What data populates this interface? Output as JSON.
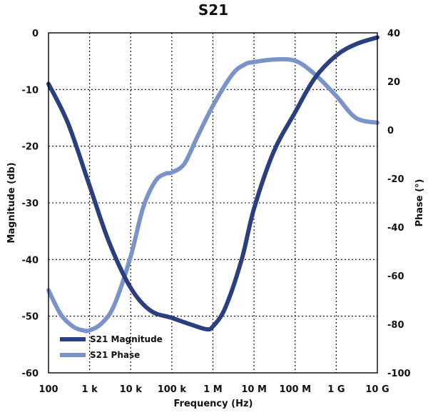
{
  "chart_data": {
    "type": "line",
    "title": "S21",
    "xlabel": "Frequency (Hz)",
    "ylabel": "Magnitude (db)",
    "y2label": "Phase (°)",
    "xscale": "log",
    "xlim": [
      100,
      10000000000
    ],
    "ylim": [
      -60,
      0
    ],
    "y2lim": [
      -100,
      40
    ],
    "grid": true,
    "legend_position": "bottom-left",
    "x_ticks": [
      100,
      1000,
      10000,
      100000,
      1000000,
      10000000,
      100000000,
      1000000000,
      10000000000
    ],
    "x_tick_labels": [
      "100",
      "1 k",
      "10 k",
      "100 k",
      "1 M",
      "10 M",
      "100 M",
      "1 G",
      "10 G"
    ],
    "y_ticks": [
      0,
      -10,
      -20,
      -30,
      -40,
      -50,
      -60
    ],
    "y_tick_labels": [
      "0",
      "-10",
      "-20",
      "-30",
      "-40",
      "-50",
      "-60"
    ],
    "y2_ticks": [
      40,
      20,
      0,
      -20,
      -40,
      -60,
      -80,
      -100
    ],
    "y2_tick_labels": [
      "40",
      "20",
      "0",
      "-20",
      "-40",
      "-60",
      "-80",
      "-100"
    ],
    "series": [
      {
        "name": "S21 Magnitude",
        "axis": "left",
        "color": "#2b3f7e",
        "x": [
          100,
          300,
          1000,
          3000,
          10000,
          30000,
          100000,
          300000,
          700000,
          1000000,
          2000000,
          5000000,
          10000000,
          30000000,
          100000000,
          300000000,
          1000000000,
          3000000000,
          10000000000
        ],
        "values": [
          -9,
          -16,
          -27,
          -37,
          -45,
          -49,
          -50.3,
          -51.5,
          -52.3,
          -51.8,
          -48.5,
          -40,
          -31,
          -21,
          -14,
          -8,
          -4,
          -2,
          -0.8
        ]
      },
      {
        "name": "S21 Phase",
        "axis": "right",
        "color": "#7a93c8",
        "x": [
          100,
          200,
          400,
          700,
          1000,
          2000,
          4000,
          10000,
          20000,
          40000,
          70000,
          100000,
          200000,
          400000,
          1000000,
          3000000,
          6000000,
          10000000,
          30000000,
          100000000,
          300000000,
          1000000000,
          3000000000,
          10000000000
        ],
        "values": [
          -66,
          -76,
          -81,
          -82.5,
          -82.5,
          -79.5,
          -72,
          -52,
          -32,
          -21,
          -18,
          -17.5,
          -14,
          -3.5,
          10,
          23,
          27,
          28,
          29,
          28.5,
          23,
          14,
          5,
          3
        ]
      }
    ]
  }
}
